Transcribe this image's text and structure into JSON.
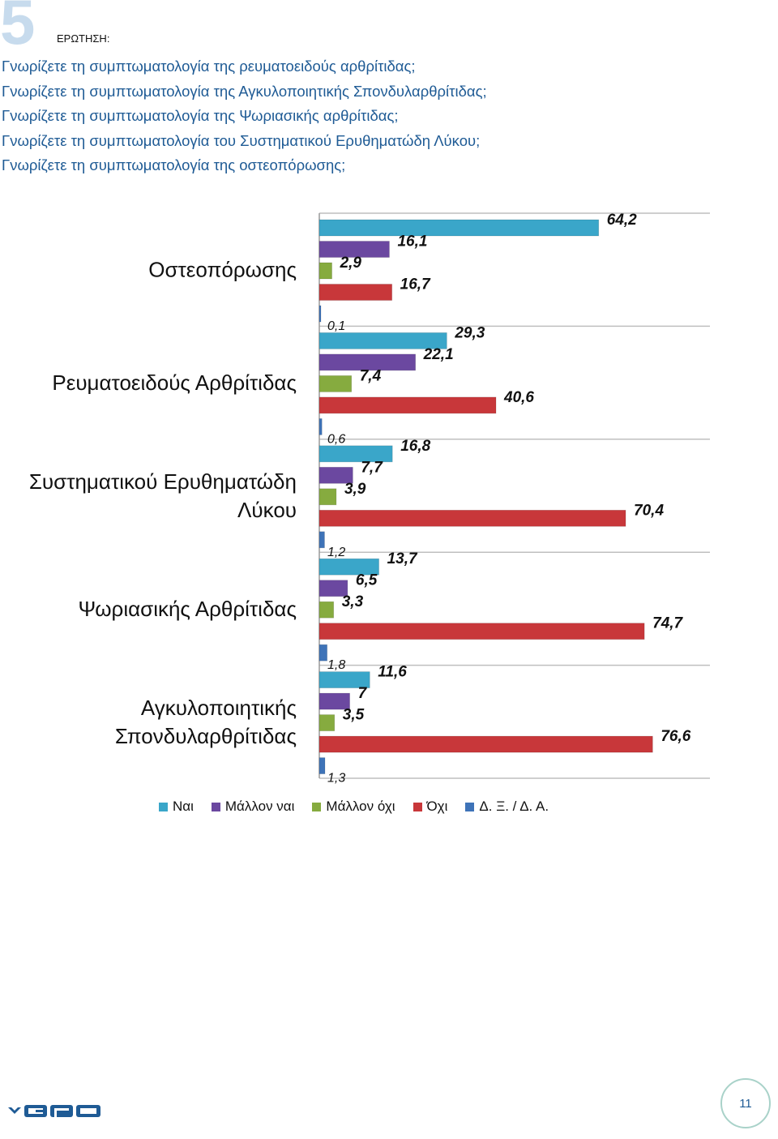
{
  "header": {
    "section_number": "5",
    "question_label": "ΕΡΩΤΗΣΗ:",
    "questions": [
      "Γνωρίζετε τη συμπτωματολογία της ρευματοειδούς αρθρίτιδας;",
      "Γνωρίζετε τη συμπτωματολογία της Αγκυλοποιητικής Σπονδυλαρθρίτιδας;",
      "Γνωρίζετε τη συμπτωματολογία της Ψωριασικής αρθρίτιδας;",
      "Γνωρίζετε τη συμπτωματολογία του Συστηματικού Ερυθηματώδη Λύκου;",
      "Γνωρίζετε τη συμπτωματολογία της οστεοπόρωσης;"
    ]
  },
  "chart_data": {
    "type": "bar",
    "orientation": "horizontal",
    "title": "",
    "xlabel": "",
    "ylabel": "",
    "xlim": [
      0,
      80
    ],
    "grid": "horizontal separators between groups",
    "legend_position": "bottom",
    "categories": [
      [
        "Οστεοπόρωσης"
      ],
      [
        "Ρευματοειδούς Αρθρίτιδας"
      ],
      [
        "Συστηματικού Ερυθηματώδη",
        "Λύκου"
      ],
      [
        "Ψωριασικής Αρθρίτιδας"
      ],
      [
        "Αγκυλοποιητικής",
        "Σπονδυλαρθρίτιδας"
      ]
    ],
    "series": [
      {
        "name": "Ναι",
        "color": "#3aa6c9",
        "values": [
          64.2,
          29.3,
          16.8,
          13.7,
          11.6
        ],
        "labels": [
          "64,2",
          "29,3",
          "16,8",
          "13,7",
          "11,6"
        ]
      },
      {
        "name": "Μάλλον ναι",
        "color": "#6b48a0",
        "values": [
          16.1,
          22.1,
          7.7,
          6.5,
          7
        ],
        "labels": [
          "16,1",
          "22,1",
          "7,7",
          "6,5",
          "7"
        ]
      },
      {
        "name": "Μάλλον όχι",
        "color": "#86ab3f",
        "values": [
          2.9,
          7.4,
          3.9,
          3.3,
          3.5
        ],
        "labels": [
          "2,9",
          "7,4",
          "3,9",
          "3,3",
          "3,5"
        ]
      },
      {
        "name": "Όχι",
        "color": "#c8373a",
        "values": [
          16.7,
          40.6,
          70.4,
          74.7,
          76.6
        ],
        "labels": [
          "16,7",
          "40,6",
          "70,4",
          "74,7",
          "76,6"
        ]
      },
      {
        "name": "Δ. Ξ. / Δ. Α.",
        "color": "#3e73b8",
        "values": [
          0.1,
          0.6,
          1.2,
          1.8,
          1.3
        ],
        "labels": [
          "0,1",
          "0,6",
          "1,2",
          "1,8",
          "1,3"
        ]
      }
    ]
  },
  "footer": {
    "logo_text": "GPO",
    "page_number": "11"
  }
}
